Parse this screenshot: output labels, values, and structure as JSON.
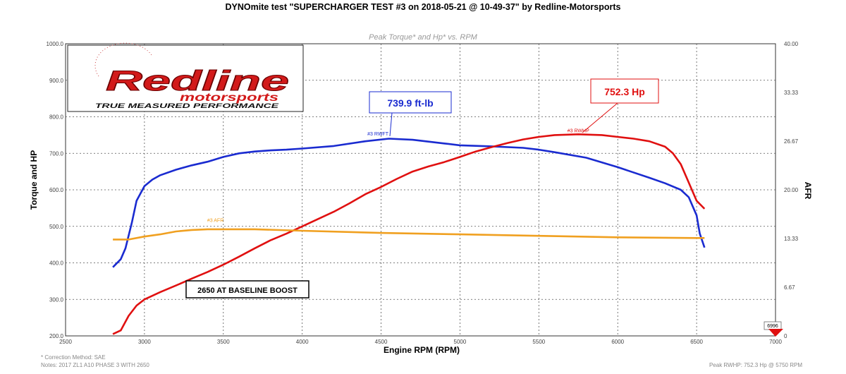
{
  "title": "DYNOmite test \"SUPERCHARGER TEST #3 on 2018-05-21 @ 10-49-37\" by Redline-Motorsports",
  "logo": {
    "brand": "Redline",
    "sub": "motorsports",
    "tagline": "TRUE MEASURED PERFORMANCE"
  },
  "footer": {
    "correction": "* Correction Method: SAE",
    "notes": "Notes: 2017 ZL1 A10 PHASE 3 WITH 2650",
    "peak": "Peak RWHP: 752.3 Hp @ 5750 RPM"
  },
  "marker_value": "6996",
  "chart_data": {
    "type": "line",
    "title": "Peak Torque* and Hp* vs. RPM",
    "xlabel": "Engine RPM (RPM)",
    "ylabel": "Torque and HP",
    "y2label": "AFR",
    "xlim": [
      2500,
      7000
    ],
    "ylim": [
      200,
      1000
    ],
    "y2lim": [
      0,
      40
    ],
    "x_ticks": [
      "2500",
      "3000",
      "3500",
      "4000",
      "4500",
      "5000",
      "5500",
      "6000",
      "6500",
      "7000"
    ],
    "y_ticks": [
      "200.0",
      "300.0",
      "400.0",
      "500.0",
      "600.0",
      "700.0",
      "800.0",
      "900.0",
      "1000.0"
    ],
    "y2_ticks": [
      "0",
      "6.67",
      "13.33",
      "20.00",
      "26.67",
      "33.33",
      "40.00"
    ],
    "grid": true,
    "series": [
      {
        "name": "#3 RWFT",
        "axis": "left",
        "color": "#1a2bd0",
        "label_rpm": 4480,
        "label_val": 743,
        "points": [
          [
            2800,
            388
          ],
          [
            2850,
            410
          ],
          [
            2880,
            440
          ],
          [
            2920,
            510
          ],
          [
            2950,
            570
          ],
          [
            3000,
            610
          ],
          [
            3050,
            628
          ],
          [
            3100,
            640
          ],
          [
            3200,
            655
          ],
          [
            3300,
            667
          ],
          [
            3400,
            677
          ],
          [
            3500,
            690
          ],
          [
            3600,
            700
          ],
          [
            3700,
            705
          ],
          [
            3800,
            708
          ],
          [
            3900,
            710
          ],
          [
            4000,
            713
          ],
          [
            4200,
            720
          ],
          [
            4400,
            733
          ],
          [
            4550,
            740
          ],
          [
            4700,
            737
          ],
          [
            4900,
            727
          ],
          [
            5000,
            722
          ],
          [
            5200,
            719
          ],
          [
            5400,
            715
          ],
          [
            5500,
            710
          ],
          [
            5600,
            703
          ],
          [
            5800,
            688
          ],
          [
            6000,
            662
          ],
          [
            6200,
            633
          ],
          [
            6300,
            618
          ],
          [
            6400,
            600
          ],
          [
            6450,
            580
          ],
          [
            6500,
            530
          ],
          [
            6520,
            480
          ],
          [
            6550,
            442
          ]
        ]
      },
      {
        "name": "#3 RWHP",
        "axis": "left",
        "color": "#e01010",
        "label_rpm": 5750,
        "label_val": 752,
        "points": [
          [
            2800,
            205
          ],
          [
            2850,
            215
          ],
          [
            2900,
            255
          ],
          [
            2950,
            283
          ],
          [
            3000,
            300
          ],
          [
            3100,
            320
          ],
          [
            3200,
            338
          ],
          [
            3300,
            357
          ],
          [
            3400,
            375
          ],
          [
            3500,
            395
          ],
          [
            3600,
            417
          ],
          [
            3700,
            440
          ],
          [
            3800,
            462
          ],
          [
            3900,
            480
          ],
          [
            4000,
            500
          ],
          [
            4100,
            520
          ],
          [
            4200,
            540
          ],
          [
            4300,
            563
          ],
          [
            4400,
            588
          ],
          [
            4500,
            608
          ],
          [
            4600,
            630
          ],
          [
            4700,
            650
          ],
          [
            4800,
            664
          ],
          [
            4900,
            676
          ],
          [
            5000,
            690
          ],
          [
            5100,
            705
          ],
          [
            5200,
            717
          ],
          [
            5300,
            728
          ],
          [
            5400,
            738
          ],
          [
            5500,
            745
          ],
          [
            5600,
            750
          ],
          [
            5750,
            752
          ],
          [
            5900,
            750
          ],
          [
            6000,
            745
          ],
          [
            6100,
            740
          ],
          [
            6200,
            733
          ],
          [
            6300,
            718
          ],
          [
            6350,
            700
          ],
          [
            6400,
            670
          ],
          [
            6450,
            620
          ],
          [
            6500,
            570
          ],
          [
            6550,
            548
          ]
        ]
      },
      {
        "name": "#3 AFR",
        "axis": "right",
        "color": "#f0a020",
        "label_rpm": 3450,
        "label_val": 15.3,
        "points": [
          [
            2800,
            13.2
          ],
          [
            2900,
            13.2
          ],
          [
            3000,
            13.6
          ],
          [
            3100,
            13.9
          ],
          [
            3200,
            14.3
          ],
          [
            3300,
            14.5
          ],
          [
            3400,
            14.6
          ],
          [
            3500,
            14.6
          ],
          [
            3700,
            14.6
          ],
          [
            4000,
            14.4
          ],
          [
            4500,
            14.1
          ],
          [
            5000,
            13.9
          ],
          [
            5500,
            13.7
          ],
          [
            6000,
            13.5
          ],
          [
            6500,
            13.4
          ],
          [
            6550,
            13.4
          ]
        ]
      }
    ],
    "annotations": [
      {
        "text": "739.9 ft-lb",
        "color": "#1a2bd0",
        "series": "#3 RWFT"
      },
      {
        "text": "752.3 Hp",
        "color": "#e01010",
        "series": "#3 RWHP"
      },
      {
        "text": "2650 AT BASELINE BOOST",
        "color": "#000000"
      }
    ]
  }
}
